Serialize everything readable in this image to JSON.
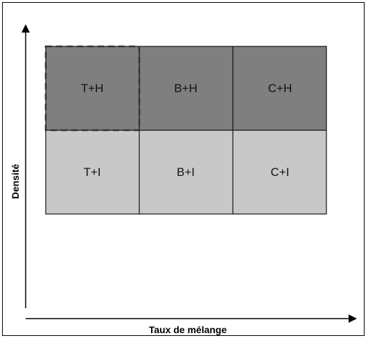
{
  "diagram": {
    "axes": {
      "x_label": "Taux de mélange",
      "y_label": "Densité"
    },
    "colors": {
      "top_row": "#7f7f7f",
      "bottom_row": "#c8c8c8",
      "grid_lines": "#111111",
      "highlight_border": "#333333"
    },
    "cells": {
      "top_left": "T+H",
      "top_middle": "B+H",
      "top_right": "C+H",
      "bottom_left": "T+I",
      "bottom_middle": "B+I",
      "bottom_right": "C+I"
    },
    "highlighted_cell": "T+H"
  }
}
